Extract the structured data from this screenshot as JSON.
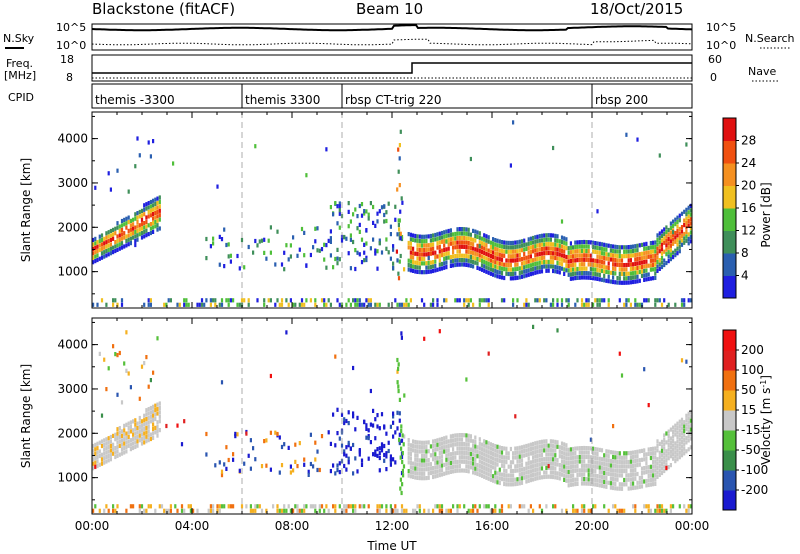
{
  "header": {
    "station": "Blackstone (fitACF)",
    "beam": "Beam 10",
    "date": "18/Oct/2015"
  },
  "summary": {
    "nsky_label": "N.Sky",
    "nsearch_label": "N.Search",
    "freq_label_1": "Freq.",
    "freq_label_2": "[MHz]",
    "nave_label": "Nave",
    "cpid_label": "CPID",
    "noise_ticks": [
      "10^5",
      "10^0"
    ],
    "freq_ticks": [
      "18",
      "8"
    ],
    "nave_ticks": [
      "60",
      "0"
    ],
    "cpid_segments": [
      {
        "label": "themis -3300",
        "start_hour": 0
      },
      {
        "label": "themis 3300",
        "start_hour": 6
      },
      {
        "label": "rbsp CT-trig 220",
        "start_hour": 10
      },
      {
        "label": "rbsp 200",
        "start_hour": 20
      }
    ]
  },
  "colors": {
    "power": [
      "#1f1fe0",
      "#2a5fb0",
      "#3f8f5a",
      "#4fbf3a",
      "#f0c020",
      "#f59020",
      "#f05010",
      "#e01010"
    ],
    "velocity": [
      "#1a1ad0",
      "#2a55b0",
      "#3a8f4a",
      "#55c03a",
      "#c8c8c8",
      "#f5b020",
      "#f07010",
      "#e02020",
      "#f01010"
    ]
  },
  "chart_data": [
    {
      "type": "heatmap",
      "ylabel": "Slant Range [km]",
      "x_ticks": [
        "00:00",
        "04:00",
        "08:00",
        "12:00",
        "16:00",
        "20:00",
        "00:00"
      ],
      "xlim": [
        0,
        24
      ],
      "y_ticks": [
        "1000",
        "2000",
        "3000",
        "4000"
      ],
      "ylim": [
        180,
        4600
      ],
      "colorbar": {
        "label": "Power [dB]",
        "ticks": [
          "4",
          "8",
          "12",
          "16",
          "20",
          "24",
          "28"
        ],
        "range": [
          0,
          32
        ]
      }
    },
    {
      "type": "heatmap",
      "ylabel": "Slant Range [km]",
      "xlabel": "Time UT",
      "x_ticks": [
        "00:00",
        "04:00",
        "08:00",
        "12:00",
        "16:00",
        "20:00",
        "00:00"
      ],
      "xlim": [
        0,
        24
      ],
      "y_ticks": [
        "1000",
        "2000",
        "3000",
        "4000"
      ],
      "ylim": [
        180,
        4600
      ],
      "colorbar": {
        "label": "Velocity [m s",
        "label_sup": "-1",
        "label_end": "]",
        "ticks": [
          "200",
          "100",
          "50",
          "15",
          "-15",
          "-50",
          "-100",
          "-200"
        ],
        "range": [
          -250,
          250
        ]
      }
    }
  ]
}
